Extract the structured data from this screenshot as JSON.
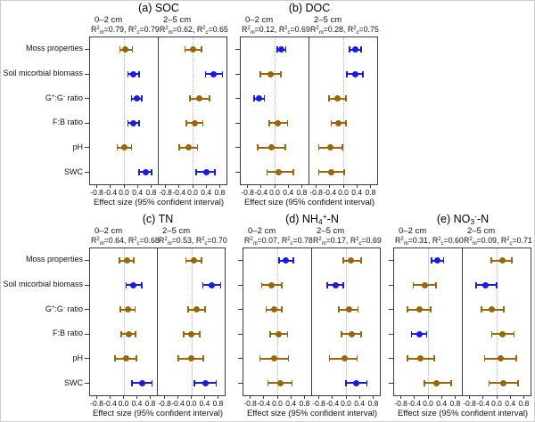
{
  "styles": {
    "blue": "#1a1ae0",
    "brown": "#9a660a",
    "border": "#3c3c3c",
    "zero_line": "#b0b0b0",
    "text": "#111111",
    "frame": "#cfcfcf"
  },
  "chart_data": {
    "type": "scatter",
    "description": "Forest plots of effect sizes with 95% confidence intervals; blue = significant, brown = non-significant",
    "x_label": "Effect size (95% confident interval)",
    "x_range": [
      -1,
      1
    ],
    "x_ticks": [
      -0.8,
      -0.4,
      0.0,
      0.4,
      0.8
    ],
    "x_tick_labels": [
      "-0.8",
      "-0.4",
      "0.0",
      "0.4",
      "0.8"
    ],
    "grid": "dotted zero reference line only",
    "legend": "none",
    "categories": [
      "Moss properties",
      "Soil micorbial biomass",
      "G^{+}:G^{-} ratio",
      "F:B ratio",
      "pH",
      "SWC"
    ],
    "panels": [
      {
        "id": "a",
        "title": "(a) SOC",
        "subpanels": [
          {
            "depth": "0–2 cm",
            "r2_label": "R^{2}_{m}=0.79, R^{2}_{c}=0.79",
            "values": [
              0.05,
              0.28,
              0.38,
              0.28,
              0.02,
              0.65
            ],
            "ci_low": [
              -0.12,
              0.12,
              0.22,
              0.12,
              -0.2,
              0.45
            ],
            "ci_high": [
              0.25,
              0.45,
              0.52,
              0.44,
              0.22,
              0.82
            ],
            "colors": [
              "brown",
              "blue",
              "blue",
              "blue",
              "brown",
              "blue"
            ]
          },
          {
            "depth": "2–5 cm",
            "r2_label": "R^{2}_{m}=0.62, R^{2}_{c}=0.65",
            "values": [
              0.02,
              0.62,
              0.2,
              0.06,
              -0.12,
              0.4
            ],
            "ci_low": [
              -0.22,
              0.38,
              -0.08,
              -0.18,
              -0.4,
              0.1
            ],
            "ci_high": [
              0.26,
              0.88,
              0.5,
              0.3,
              0.15,
              0.66
            ],
            "colors": [
              "brown",
              "blue",
              "brown",
              "brown",
              "brown",
              "blue"
            ]
          }
        ]
      },
      {
        "id": "b",
        "title": "(b) DOC",
        "subpanels": [
          {
            "depth": "0–2 cm",
            "r2_label": "R^{2}_{m}=0.12, R^{2}_{c}=0.69",
            "values": [
              0.2,
              -0.12,
              -0.45,
              0.1,
              -0.1,
              0.12
            ],
            "ci_low": [
              0.08,
              -0.42,
              -0.6,
              -0.16,
              -0.5,
              -0.22
            ],
            "ci_high": [
              0.33,
              0.18,
              -0.3,
              0.38,
              0.32,
              0.55
            ],
            "colors": [
              "blue",
              "brown",
              "blue",
              "brown",
              "brown",
              "brown"
            ]
          },
          {
            "depth": "2–5 cm",
            "r2_label": "R^{2}_{m}=0.28, R^{2}_{c}=0.75",
            "values": [
              0.35,
              0.35,
              -0.18,
              -0.15,
              -0.38,
              -0.36
            ],
            "ci_low": [
              0.18,
              0.1,
              -0.42,
              -0.36,
              -0.72,
              -0.72
            ],
            "ci_high": [
              0.52,
              0.58,
              0.08,
              0.08,
              -0.02,
              0.02
            ],
            "colors": [
              "blue",
              "blue",
              "brown",
              "brown",
              "brown",
              "brown"
            ]
          }
        ]
      },
      {
        "id": "c",
        "title": "(c) TN",
        "subpanels": [
          {
            "depth": "0–2 cm",
            "r2_label": "R^{2}_{m}=0.64, R^{2}_{c}=0.68",
            "values": [
              0.1,
              0.3,
              0.12,
              0.15,
              0.08,
              0.55
            ],
            "ci_low": [
              -0.12,
              0.08,
              -0.1,
              -0.06,
              -0.26,
              0.25
            ],
            "ci_high": [
              0.3,
              0.55,
              0.35,
              0.36,
              0.38,
              0.85
            ],
            "colors": [
              "brown",
              "blue",
              "brown",
              "brown",
              "brown",
              "blue"
            ]
          },
          {
            "depth": "2–5 cm",
            "r2_label": "R^{2}_{m}=0.53, R^{2}_{c}=0.70",
            "values": [
              0.08,
              0.6,
              0.15,
              0.0,
              0.0,
              0.42
            ],
            "ci_low": [
              -0.16,
              0.35,
              -0.1,
              -0.22,
              -0.38,
              0.1
            ],
            "ci_high": [
              0.3,
              0.88,
              0.42,
              0.25,
              0.36,
              0.75
            ],
            "colors": [
              "brown",
              "blue",
              "brown",
              "brown",
              "brown",
              "blue"
            ]
          }
        ]
      },
      {
        "id": "d",
        "title": "(d) NH_{4}^{+}-N",
        "subpanels": [
          {
            "depth": "0–2 cm",
            "r2_label": "R^{2}_{m}=0.07, R^{2}_{c}=0.78",
            "values": [
              0.26,
              -0.18,
              -0.1,
              0.05,
              -0.08,
              0.08
            ],
            "ci_low": [
              0.05,
              -0.46,
              -0.33,
              -0.21,
              -0.51,
              -0.28
            ],
            "ci_high": [
              0.48,
              0.13,
              0.13,
              0.3,
              0.33,
              0.43
            ],
            "colors": [
              "blue",
              "brown",
              "brown",
              "brown",
              "brown",
              "brown"
            ]
          },
          {
            "depth": "2–5 cm",
            "r2_label": "R^{2}_{m}=0.17, R^{2}_{c}=0.69",
            "values": [
              0.15,
              -0.31,
              0.08,
              0.18,
              -0.05,
              0.31
            ],
            "ci_low": [
              -0.08,
              -0.56,
              -0.21,
              -0.13,
              -0.49,
              0.0
            ],
            "ci_high": [
              0.44,
              -0.08,
              0.36,
              0.44,
              0.33,
              0.62
            ],
            "colors": [
              "brown",
              "blue",
              "brown",
              "brown",
              "brown",
              "blue"
            ]
          }
        ]
      },
      {
        "id": "e",
        "title": "(e) NO_{3}^{-}-N",
        "subpanels": [
          {
            "depth": "0–2 cm",
            "r2_label": "R^{2}_{m}=0.31, R^{2}_{c}=0.60",
            "values": [
              0.28,
              -0.1,
              -0.26,
              -0.26,
              -0.23,
              0.26
            ],
            "ci_low": [
              0.1,
              -0.43,
              -0.61,
              -0.49,
              -0.61,
              -0.11
            ],
            "ci_high": [
              0.46,
              0.23,
              0.08,
              -0.04,
              0.19,
              0.68
            ],
            "colors": [
              "blue",
              "brown",
              "brown",
              "blue",
              "brown",
              "brown"
            ]
          },
          {
            "depth": "2–5 cm",
            "r2_label": "R^{2}_{m}=0.09, R^{2}_{c}=0.71",
            "values": [
              0.16,
              -0.32,
              -0.14,
              0.18,
              0.12,
              0.21
            ],
            "ci_low": [
              -0.16,
              -0.61,
              -0.44,
              -0.14,
              -0.35,
              -0.22
            ],
            "ci_high": [
              0.45,
              0.0,
              0.21,
              0.51,
              0.58,
              0.63
            ],
            "colors": [
              "brown",
              "blue",
              "brown",
              "brown",
              "brown",
              "brown"
            ]
          }
        ]
      }
    ]
  }
}
